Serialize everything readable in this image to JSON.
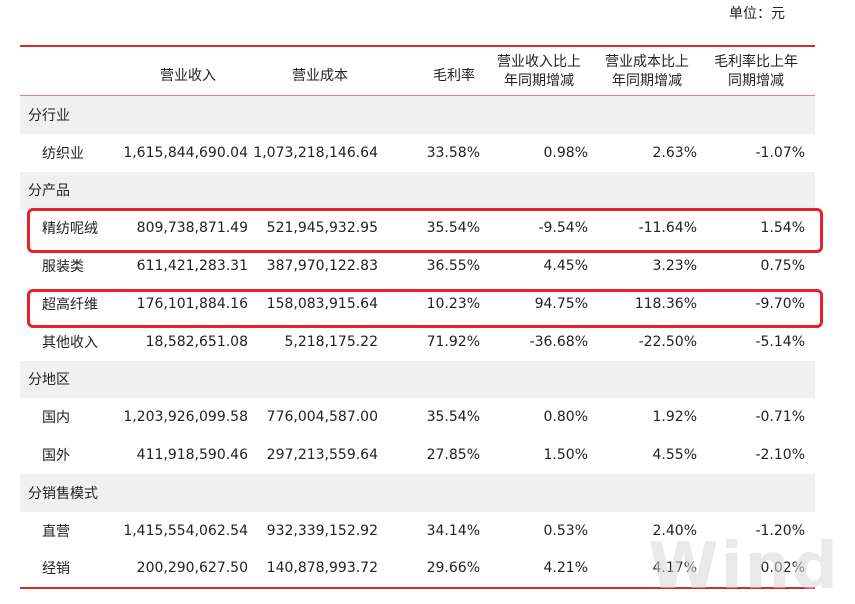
{
  "unit_label": "单位：元",
  "headers": {
    "revenue": "营业收入",
    "cost": "营业成本",
    "margin": "毛利率",
    "rev_change_l1": "营业收入比上",
    "rev_change_l2": "年同期增减",
    "cost_change_l1": "营业成本比上",
    "cost_change_l2": "年同期增减",
    "margin_change_l1": "毛利率比上年",
    "margin_change_l2": "同期增减"
  },
  "rows": [
    {
      "type": "section",
      "label": "分行业"
    },
    {
      "type": "data",
      "label": "纺织业",
      "revenue": "1,615,844,690.04",
      "cost": "1,073,218,146.64",
      "margin": "33.58%",
      "rev_change": "0.98%",
      "cost_change": "2.63%",
      "margin_change": "-1.07%"
    },
    {
      "type": "section",
      "label": "分产品"
    },
    {
      "type": "data",
      "label": "精纺呢绒",
      "revenue": "809,738,871.49",
      "cost": "521,945,932.95",
      "margin": "35.54%",
      "rev_change": "-9.54%",
      "cost_change": "-11.64%",
      "margin_change": "1.54%"
    },
    {
      "type": "data",
      "label": "服装类",
      "revenue": "611,421,283.31",
      "cost": "387,970,122.83",
      "margin": "36.55%",
      "rev_change": "4.45%",
      "cost_change": "3.23%",
      "margin_change": "0.75%"
    },
    {
      "type": "data",
      "label": "超高纤维",
      "revenue": "176,101,884.16",
      "cost": "158,083,915.64",
      "margin": "10.23%",
      "rev_change": "94.75%",
      "cost_change": "118.36%",
      "margin_change": "-9.70%"
    },
    {
      "type": "data",
      "label": "其他收入",
      "revenue": "18,582,651.08",
      "cost": "5,218,175.22",
      "margin": "71.92%",
      "rev_change": "-36.68%",
      "cost_change": "-22.50%",
      "margin_change": "-5.14%"
    },
    {
      "type": "section",
      "label": "分地区"
    },
    {
      "type": "data",
      "label": "国内",
      "revenue": "1,203,926,099.58",
      "cost": "776,004,587.00",
      "margin": "35.54%",
      "rev_change": "0.80%",
      "cost_change": "1.92%",
      "margin_change": "-0.71%"
    },
    {
      "type": "data",
      "label": "国外",
      "revenue": "411,918,590.46",
      "cost": "297,213,559.64",
      "margin": "27.85%",
      "rev_change": "1.50%",
      "cost_change": "4.55%",
      "margin_change": "-2.10%"
    },
    {
      "type": "section",
      "label": "分销售模式"
    },
    {
      "type": "data",
      "label": "直营",
      "revenue": "1,415,554,062.54",
      "cost": "932,339,152.92",
      "margin": "34.14%",
      "rev_change": "0.53%",
      "cost_change": "2.40%",
      "margin_change": "-1.20%"
    },
    {
      "type": "data",
      "label": "经销",
      "revenue": "200,290,627.50",
      "cost": "140,878,993.72",
      "margin": "29.66%",
      "rev_change": "4.21%",
      "cost_change": "4.17%",
      "margin_change": "0.02%"
    }
  ],
  "highlight_color": "#e8202a",
  "rule_color": "#c9302c",
  "watermark": "Wind"
}
